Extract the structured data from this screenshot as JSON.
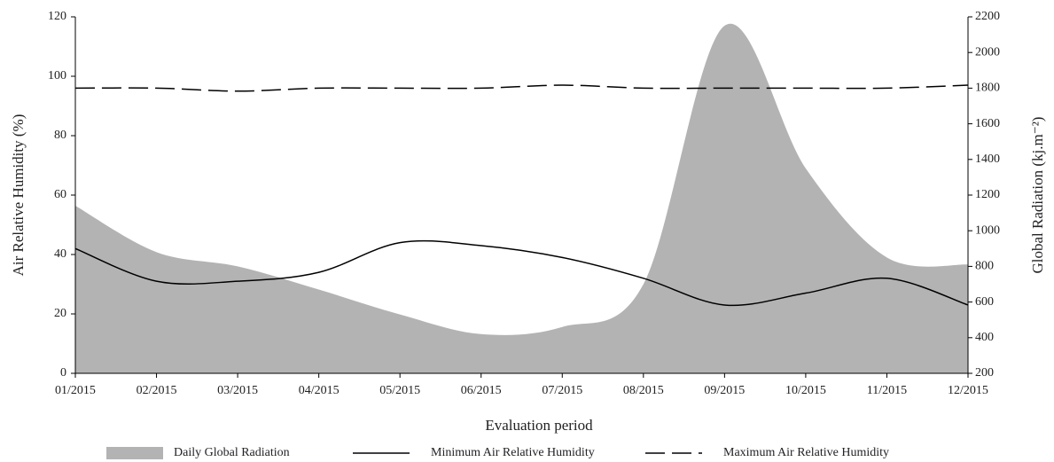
{
  "chart_data": {
    "type": "line",
    "x_label": "Evaluation period",
    "y_label": "Air Relative Humidity (%)",
    "y2_label": "Global Radiation (kj.m⁻²)",
    "categories": [
      "01/2015",
      "02/2015",
      "03/2015",
      "04/2015",
      "05/2015",
      "06/2015",
      "07/2015",
      "08/2015",
      "09/2015",
      "10/2015",
      "11/2015",
      "12/2015"
    ],
    "series": [
      {
        "name": "Daily Global Radiation",
        "color": "#b3b3b3",
        "style": "area",
        "axis": "y2",
        "values": [
          1140,
          880,
          800,
          670,
          530,
          420,
          460,
          700,
          2150,
          1350,
          850,
          810
        ]
      },
      {
        "name": "Minimum Air Relative Humidity",
        "color": "#000000",
        "style": "solid",
        "values": [
          42,
          31,
          31,
          34,
          44,
          43,
          39,
          32,
          23,
          27,
          32,
          23
        ]
      },
      {
        "name": "Maximum Air Relative Humidity",
        "color": "#000000",
        "style": "dashed",
        "values": [
          96,
          96,
          95,
          96,
          96,
          96,
          97,
          96,
          96,
          96,
          96,
          97
        ]
      }
    ],
    "ylim": [
      0,
      120
    ],
    "yticks": [
      0,
      20,
      40,
      60,
      80,
      100,
      120
    ],
    "y2lim": [
      200,
      2200
    ],
    "y2ticks": [
      200,
      400,
      600,
      800,
      1000,
      1200,
      1400,
      1600,
      1800,
      2000,
      2200
    ],
    "legend": "bottom"
  }
}
